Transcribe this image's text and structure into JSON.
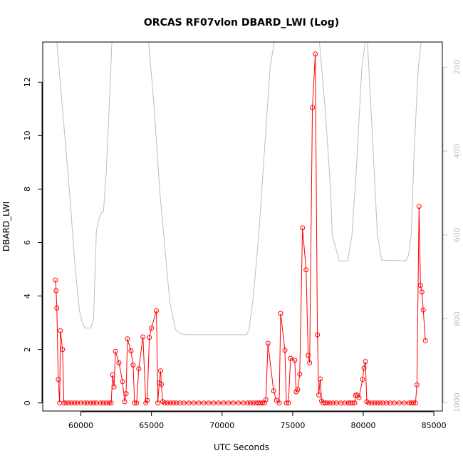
{
  "chart_data": {
    "type": "line",
    "title": "ORCAS RF07vlon DBARD_LWI (Log)",
    "xlabel": "UTC Seconds",
    "ylabel": "DBARD_LWI",
    "xlim": [
      57300,
      85600
    ],
    "ylim": [
      -0.3,
      13.5
    ],
    "x_ticks": [
      60000,
      65000,
      70000,
      75000,
      80000,
      85000
    ],
    "x_tick_labels": [
      "60000",
      "65000",
      "70000",
      "75000",
      "80000",
      "85000"
    ],
    "y_ticks": [
      0,
      2,
      4,
      6,
      8,
      10,
      12
    ],
    "y_tick_labels": [
      "0",
      "2",
      "4",
      "6",
      "8",
      "10",
      "12"
    ],
    "y2_lim": [
      1020,
      140
    ],
    "y2_ticks": [
      200,
      400,
      600,
      800,
      1000
    ],
    "y2_tick_labels": [
      "200",
      "400",
      "600",
      "800",
      "1000"
    ],
    "grid": false,
    "colors": {
      "series": "#ff0000",
      "secondary": "#bebebe",
      "axes": "#000000"
    },
    "series": [
      {
        "role": "primary",
        "marker": "open-circle",
        "points": [
          [
            58200,
            4.6
          ],
          [
            58250,
            4.2
          ],
          [
            58300,
            3.55
          ],
          [
            58400,
            0.88
          ],
          [
            58500,
            0.0
          ],
          [
            58550,
            2.7
          ],
          [
            58700,
            2.0
          ],
          [
            58800,
            0.0
          ],
          [
            58950,
            0
          ],
          [
            59150,
            0
          ],
          [
            59350,
            0
          ],
          [
            59550,
            0
          ],
          [
            59750,
            0
          ],
          [
            60000,
            0
          ],
          [
            60250,
            0
          ],
          [
            60450,
            0
          ],
          [
            60700,
            0
          ],
          [
            60900,
            0
          ],
          [
            61100,
            0
          ],
          [
            61400,
            0
          ],
          [
            61600,
            0
          ],
          [
            61800,
            0
          ],
          [
            62000,
            0
          ],
          [
            62150,
            0
          ],
          [
            62250,
            1.05
          ],
          [
            62350,
            0.6
          ],
          [
            62450,
            1.93
          ],
          [
            62700,
            1.5
          ],
          [
            62950,
            0.8
          ],
          [
            63100,
            0.05
          ],
          [
            63200,
            0.35
          ],
          [
            63300,
            2.4
          ],
          [
            63550,
            1.95
          ],
          [
            63700,
            1.42
          ],
          [
            63800,
            0.0
          ],
          [
            63950,
            0.0
          ],
          [
            64100,
            1.28
          ],
          [
            64400,
            2.47
          ],
          [
            64600,
            0.0
          ],
          [
            64700,
            0.1
          ],
          [
            64850,
            2.45
          ],
          [
            65000,
            2.8
          ],
          [
            65350,
            3.45
          ],
          [
            65450,
            0.0
          ],
          [
            65550,
            0.75
          ],
          [
            65650,
            1.2
          ],
          [
            65700,
            0.7
          ],
          [
            65800,
            0.05
          ],
          [
            65950,
            0
          ],
          [
            66150,
            0
          ],
          [
            66350,
            0
          ],
          [
            66550,
            0
          ],
          [
            66750,
            0
          ],
          [
            67000,
            0
          ],
          [
            67300,
            0
          ],
          [
            67650,
            0
          ],
          [
            68000,
            0
          ],
          [
            68350,
            0
          ],
          [
            68700,
            0
          ],
          [
            69050,
            0
          ],
          [
            69400,
            0
          ],
          [
            69750,
            0
          ],
          [
            70100,
            0
          ],
          [
            70450,
            0
          ],
          [
            70800,
            0
          ],
          [
            71150,
            0
          ],
          [
            71500,
            0
          ],
          [
            71800,
            0
          ],
          [
            72000,
            0
          ],
          [
            72200,
            0
          ],
          [
            72400,
            0
          ],
          [
            72550,
            0
          ],
          [
            72700,
            0
          ],
          [
            72850,
            0
          ],
          [
            73000,
            0
          ],
          [
            73100,
            0.12
          ],
          [
            73250,
            2.23
          ],
          [
            73650,
            0.45
          ],
          [
            73850,
            0.1
          ],
          [
            74050,
            0.0
          ],
          [
            74150,
            3.35
          ],
          [
            74450,
            1.97
          ],
          [
            74550,
            0.0
          ],
          [
            74700,
            0.0
          ],
          [
            74850,
            1.67
          ],
          [
            75150,
            1.6
          ],
          [
            75250,
            0.42
          ],
          [
            75350,
            0.5
          ],
          [
            75500,
            1.08
          ],
          [
            75700,
            6.55
          ],
          [
            75950,
            4.98
          ],
          [
            76100,
            1.78
          ],
          [
            76200,
            1.5
          ],
          [
            76400,
            11.05
          ],
          [
            76600,
            13.05
          ],
          [
            76750,
            2.55
          ],
          [
            76850,
            0.3
          ],
          [
            76950,
            0.9
          ],
          [
            77050,
            0.08
          ],
          [
            77150,
            0
          ],
          [
            77300,
            0
          ],
          [
            77450,
            0
          ],
          [
            77650,
            0
          ],
          [
            77850,
            0
          ],
          [
            78100,
            0
          ],
          [
            78400,
            0
          ],
          [
            78700,
            0
          ],
          [
            78950,
            0
          ],
          [
            79100,
            0
          ],
          [
            79250,
            0
          ],
          [
            79400,
            0
          ],
          [
            79450,
            0.28
          ],
          [
            79550,
            0.3
          ],
          [
            79700,
            0.2
          ],
          [
            79950,
            0.88
          ],
          [
            80050,
            1.3
          ],
          [
            80150,
            1.55
          ],
          [
            80250,
            0.05
          ],
          [
            80400,
            0
          ],
          [
            80600,
            0
          ],
          [
            80800,
            0
          ],
          [
            81000,
            0
          ],
          [
            81200,
            0
          ],
          [
            81400,
            0
          ],
          [
            81650,
            0
          ],
          [
            81900,
            0
          ],
          [
            82200,
            0
          ],
          [
            82550,
            0
          ],
          [
            82900,
            0
          ],
          [
            83250,
            0
          ],
          [
            83400,
            0
          ],
          [
            83550,
            0
          ],
          [
            83700,
            0
          ],
          [
            83800,
            0.68
          ],
          [
            83950,
            7.35
          ],
          [
            84050,
            4.4
          ],
          [
            84150,
            4.15
          ],
          [
            84250,
            3.48
          ],
          [
            84400,
            2.33
          ]
        ]
      },
      {
        "role": "secondary-axis",
        "marker": "none",
        "points": [
          [
            58300,
            140
          ],
          [
            58700,
            300
          ],
          [
            59200,
            500
          ],
          [
            59600,
            680
          ],
          [
            59900,
            780
          ],
          [
            60100,
            810
          ],
          [
            60300,
            822
          ],
          [
            60700,
            822
          ],
          [
            60900,
            800
          ],
          [
            61000,
            700
          ],
          [
            61100,
            590
          ],
          [
            61300,
            560
          ],
          [
            61500,
            545
          ],
          [
            61600,
            545
          ],
          [
            61800,
            450
          ],
          [
            62000,
            300
          ],
          [
            62200,
            140
          ],
          [
            64800,
            140
          ],
          [
            65200,
            300
          ],
          [
            65600,
            500
          ],
          [
            66000,
            650
          ],
          [
            66300,
            760
          ],
          [
            66700,
            825
          ],
          [
            67000,
            835
          ],
          [
            67400,
            838
          ],
          [
            71700,
            838
          ],
          [
            71900,
            828
          ],
          [
            72200,
            750
          ],
          [
            72600,
            600
          ],
          [
            73000,
            400
          ],
          [
            73400,
            200
          ],
          [
            73700,
            140
          ],
          [
            76900,
            140
          ],
          [
            77300,
            300
          ],
          [
            77700,
            500
          ],
          [
            77800,
            600
          ],
          [
            78300,
            662
          ],
          [
            78900,
            662
          ],
          [
            79200,
            600
          ],
          [
            79500,
            450
          ],
          [
            79900,
            200
          ],
          [
            80150,
            140
          ],
          [
            80300,
            140
          ],
          [
            80700,
            400
          ],
          [
            81000,
            600
          ],
          [
            81300,
            660
          ],
          [
            83000,
            662
          ],
          [
            83200,
            650
          ],
          [
            83400,
            600
          ],
          [
            83600,
            400
          ],
          [
            83900,
            200
          ],
          [
            84100,
            140
          ]
        ]
      }
    ]
  }
}
